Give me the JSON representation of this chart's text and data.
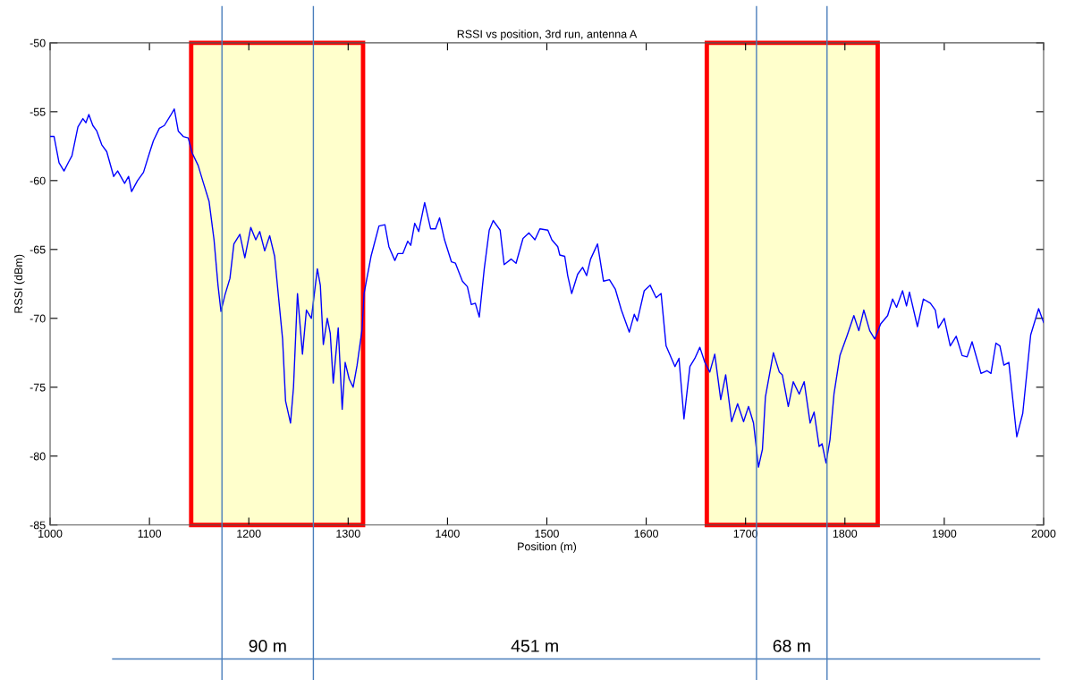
{
  "chart_data": {
    "type": "line",
    "title": "RSSI vs position, 3rd run, antenna A",
    "xlabel": "Position (m)",
    "ylabel": "RSSI (dBm)",
    "xlim": [
      1000,
      2000
    ],
    "xticks": [
      1000,
      1100,
      1200,
      1300,
      1400,
      1500,
      1600,
      1700,
      1800,
      1900,
      2000
    ],
    "ylim": [
      -85,
      -50
    ],
    "yticks": [
      -85,
      -80,
      -75,
      -70,
      -65,
      -60,
      -55,
      -50
    ],
    "grid": false,
    "legend": false,
    "marker": "none",
    "line_style": "solid",
    "series": [
      {
        "color": "#0000ff",
        "x": [
          1000,
          1004,
          1009,
          1014,
          1019,
          1022,
          1028,
          1033,
          1036,
          1039,
          1043,
          1047,
          1052,
          1057,
          1064,
          1068,
          1075,
          1079,
          1082,
          1088,
          1094,
          1100,
          1104,
          1110,
          1115,
          1121,
          1125,
          1129,
          1134,
          1139,
          1143,
          1149,
          1154,
          1160,
          1165,
          1169,
          1172,
          1176,
          1181,
          1185,
          1191,
          1196,
          1202,
          1207,
          1211,
          1216,
          1221,
          1226,
          1230,
          1234,
          1237,
          1242,
          1245,
          1249,
          1254,
          1258,
          1263,
          1269,
          1272,
          1275,
          1279,
          1282,
          1285,
          1290,
          1294,
          1297,
          1301,
          1305,
          1309,
          1314,
          1316,
          1323,
          1331,
          1337,
          1341,
          1347,
          1350,
          1355,
          1360,
          1363,
          1367,
          1371,
          1377,
          1383,
          1388,
          1392,
          1397,
          1404,
          1408,
          1415,
          1420,
          1424,
          1428,
          1432,
          1437,
          1442,
          1446,
          1453,
          1457,
          1464,
          1469,
          1476,
          1482,
          1488,
          1493,
          1501,
          1505,
          1511,
          1513,
          1518,
          1521,
          1525,
          1531,
          1536,
          1540,
          1544,
          1551,
          1557,
          1563,
          1569,
          1575,
          1583,
          1588,
          1591,
          1598,
          1604,
          1610,
          1615,
          1620,
          1629,
          1633,
          1638,
          1644,
          1649,
          1654,
          1659,
          1664,
          1669,
          1675,
          1680,
          1686,
          1692,
          1698,
          1703,
          1708,
          1713,
          1717,
          1720,
          1728,
          1734,
          1737,
          1743,
          1748,
          1754,
          1759,
          1765,
          1769,
          1774,
          1777,
          1781,
          1785,
          1789,
          1795,
          1802,
          1809,
          1814,
          1819,
          1825,
          1830,
          1836,
          1843,
          1848,
          1852,
          1858,
          1862,
          1865,
          1873,
          1879,
          1886,
          1891,
          1894,
          1900,
          1906,
          1912,
          1918,
          1923,
          1928,
          1937,
          1943,
          1947,
          1952,
          1956,
          1960,
          1965,
          1973,
          1979,
          1987,
          1995,
          2000
        ],
        "values": [
          -56.8,
          -56.8,
          -58.7,
          -59.3,
          -58.6,
          -58.2,
          -56.1,
          -55.5,
          -55.8,
          -55.2,
          -56.0,
          -56.4,
          -57.4,
          -57.9,
          -59.7,
          -59.3,
          -60.2,
          -59.7,
          -60.8,
          -60.0,
          -59.4,
          -58.0,
          -57.1,
          -56.2,
          -56.0,
          -55.3,
          -54.8,
          -56.4,
          -56.8,
          -56.9,
          -58.0,
          -58.9,
          -60.1,
          -61.5,
          -64.3,
          -67.6,
          -69.5,
          -68.3,
          -67.1,
          -64.6,
          -63.9,
          -65.6,
          -63.4,
          -64.3,
          -63.7,
          -65.1,
          -64.0,
          -65.5,
          -68.5,
          -71.5,
          -76.0,
          -77.6,
          -75.0,
          -68.2,
          -72.6,
          -69.4,
          -70.0,
          -66.4,
          -67.6,
          -71.9,
          -70.0,
          -71.1,
          -74.7,
          -70.7,
          -76.6,
          -73.2,
          -74.4,
          -75.0,
          -73.4,
          -70.8,
          -68.2,
          -65.5,
          -63.3,
          -63.2,
          -64.8,
          -65.8,
          -65.3,
          -65.3,
          -64.4,
          -64.7,
          -63.1,
          -63.7,
          -61.6,
          -63.5,
          -63.5,
          -62.7,
          -64.3,
          -65.9,
          -66.0,
          -67.3,
          -67.7,
          -69.0,
          -68.9,
          -69.9,
          -66.4,
          -63.6,
          -62.9,
          -63.6,
          -66.1,
          -65.7,
          -66.0,
          -64.2,
          -63.8,
          -64.3,
          -63.5,
          -63.6,
          -64.3,
          -64.8,
          -65.4,
          -65.5,
          -66.9,
          -68.2,
          -66.8,
          -66.3,
          -66.9,
          -65.7,
          -64.6,
          -67.3,
          -67.2,
          -67.9,
          -69.4,
          -71.0,
          -69.7,
          -70.2,
          -68.0,
          -67.6,
          -68.5,
          -68.2,
          -72.0,
          -73.5,
          -72.9,
          -77.3,
          -73.5,
          -72.9,
          -72.1,
          -73.2,
          -73.9,
          -72.6,
          -75.9,
          -74.1,
          -77.5,
          -76.2,
          -77.5,
          -76.4,
          -77.6,
          -80.8,
          -79.5,
          -75.7,
          -72.5,
          -73.9,
          -74.1,
          -76.4,
          -74.6,
          -75.5,
          -74.6,
          -77.6,
          -76.8,
          -79.3,
          -79.1,
          -80.5,
          -78.8,
          -75.5,
          -72.7,
          -71.3,
          -69.8,
          -70.9,
          -69.4,
          -70.9,
          -71.5,
          -70.4,
          -69.8,
          -68.6,
          -69.2,
          -68.0,
          -69.1,
          -68.1,
          -70.6,
          -68.6,
          -68.9,
          -69.4,
          -70.7,
          -70.0,
          -72.0,
          -71.3,
          -72.7,
          -72.8,
          -71.7,
          -74.0,
          -73.8,
          -74.0,
          -71.8,
          -72.0,
          -73.4,
          -73.2,
          -78.6,
          -76.9,
          -71.2,
          -69.3,
          -70.3
        ]
      }
    ],
    "bands": [
      {
        "axis": "x",
        "from": 1142,
        "to": 1315,
        "color": "#ffffcc"
      },
      {
        "axis": "x",
        "from": 1661,
        "to": 1833,
        "color": "#ffffcc"
      }
    ],
    "ref_lines": [
      {
        "axis": "x",
        "value": 1173,
        "color": "#4a7ebb",
        "line_style": "solid"
      },
      {
        "axis": "x",
        "value": 1265,
        "color": "#4a7ebb",
        "line_style": "solid"
      },
      {
        "axis": "x",
        "value": 1711,
        "color": "#4a7ebb",
        "line_style": "solid"
      },
      {
        "axis": "x",
        "value": 1782,
        "color": "#4a7ebb",
        "line_style": "solid"
      }
    ],
    "annotations": [
      "90 m",
      "451 m",
      "68 m"
    ]
  }
}
